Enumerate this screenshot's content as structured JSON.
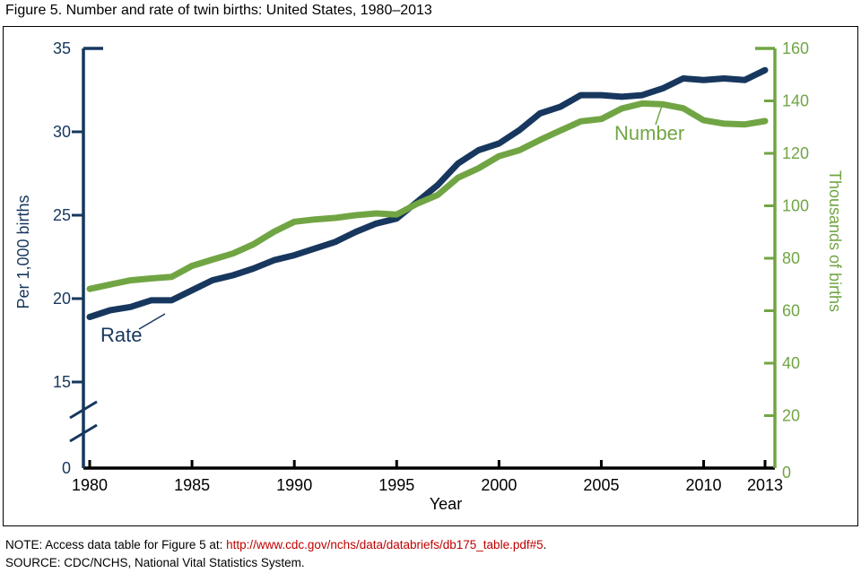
{
  "figure_title": "Figure 5. Number and rate of twin births: United States, 1980–2013",
  "note": {
    "prefix": "NOTE: Access data table for Figure 5 at: ",
    "link_text": "http://www.cdc.gov/nchs/data/databriefs/db175_table.pdf#5",
    "suffix": "."
  },
  "source_text": "SOURCE: CDC/NCHS, National Vital Statistics System.",
  "colors": {
    "rate_navy": "#17375E",
    "number_green": "#71A544",
    "x_axis_black": "#000000",
    "link_red": "#C00000"
  },
  "chart_data": {
    "type": "line",
    "title": "Figure 5. Number and rate of twin births: United States, 1980–2013",
    "x": [
      1980,
      1981,
      1982,
      1983,
      1984,
      1985,
      1986,
      1987,
      1988,
      1989,
      1990,
      1991,
      1992,
      1993,
      1994,
      1995,
      1996,
      1997,
      1998,
      1999,
      2000,
      2001,
      2002,
      2003,
      2004,
      2005,
      2006,
      2007,
      2008,
      2009,
      2010,
      2011,
      2012,
      2013
    ],
    "series": [
      {
        "name": "Rate",
        "label": "Rate",
        "axis": "left",
        "color": "#17375E",
        "values": [
          18.9,
          19.3,
          19.5,
          19.9,
          19.9,
          20.5,
          21.1,
          21.4,
          21.8,
          22.3,
          22.6,
          23.0,
          23.4,
          24.0,
          24.5,
          24.8,
          25.8,
          26.8,
          28.1,
          28.9,
          29.3,
          30.1,
          31.1,
          31.5,
          32.2,
          32.2,
          32.1,
          32.2,
          32.6,
          33.2,
          33.1,
          33.2,
          33.1,
          33.7
        ]
      },
      {
        "name": "Number",
        "label": "Number",
        "axis": "right",
        "color": "#71A544",
        "values": [
          68.3,
          70.0,
          71.6,
          72.3,
          72.9,
          77.1,
          79.5,
          81.8,
          85.3,
          90.1,
          93.9,
          94.8,
          95.4,
          96.4,
          97.1,
          96.7,
          100.8,
          104.1,
          110.7,
          114.3,
          118.9,
          121.2,
          125.1,
          128.7,
          132.2,
          133.1,
          137.1,
          139.0,
          138.7,
          137.2,
          132.6,
          131.3,
          131.0,
          132.3
        ]
      }
    ],
    "axes": {
      "left": {
        "title": "Per 1,000 births",
        "ticks": [
          0,
          15,
          20,
          25,
          30,
          35
        ],
        "shown_range": [
          15,
          35
        ],
        "axis_break": true,
        "color": "#17375E"
      },
      "right": {
        "title": "Thousands of births",
        "ticks": [
          0,
          20,
          40,
          60,
          80,
          100,
          120,
          140,
          160
        ],
        "range": [
          0,
          160
        ],
        "color": "#71A544"
      },
      "x": {
        "title": "Year",
        "ticks": [
          1980,
          1985,
          1990,
          1995,
          2000,
          2005,
          2010,
          2013
        ],
        "range": [
          1980,
          2013
        ],
        "color": "#000000"
      }
    },
    "legend_position": "labels-on-lines",
    "grid": false
  }
}
